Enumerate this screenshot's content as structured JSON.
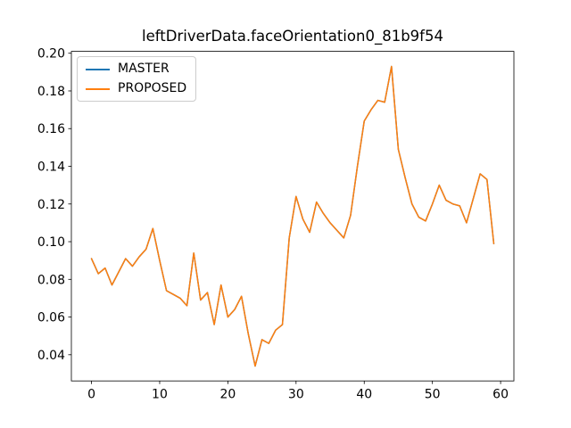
{
  "chart_data": {
    "type": "line",
    "title": "leftDriverData.faceOrientation0_81b9f54",
    "xlabel": "",
    "ylabel": "",
    "grid": false,
    "legend_position": "upper-left",
    "background_color": "#ffffff",
    "axis_color": "#000000",
    "x_ticks": [
      0,
      10,
      20,
      30,
      40,
      50,
      60
    ],
    "y_ticks": [
      0.04,
      0.06,
      0.08,
      0.1,
      0.12,
      0.14,
      0.16,
      0.18,
      0.2
    ],
    "xlim": [
      -2.95,
      61.95
    ],
    "ylim": [
      0.0261,
      0.201
    ],
    "x": [
      0,
      1,
      2,
      3,
      4,
      5,
      6,
      7,
      8,
      9,
      10,
      11,
      12,
      13,
      14,
      15,
      16,
      17,
      18,
      19,
      20,
      21,
      22,
      23,
      24,
      25,
      26,
      27,
      28,
      29,
      30,
      31,
      32,
      33,
      34,
      35,
      36,
      37,
      38,
      39,
      40,
      41,
      42,
      43,
      44,
      45,
      46,
      47,
      48,
      49,
      50,
      51,
      52,
      53,
      54,
      55,
      56,
      57,
      58,
      59
    ],
    "series": [
      {
        "name": "MASTER",
        "color": "#1f77b4",
        "values": [
          0.091,
          0.083,
          0.086,
          0.077,
          0.084,
          0.091,
          0.087,
          0.092,
          0.096,
          0.107,
          0.09,
          0.074,
          0.072,
          0.07,
          0.066,
          0.094,
          0.069,
          0.073,
          0.056,
          0.077,
          0.06,
          0.064,
          0.071,
          0.051,
          0.034,
          0.048,
          0.046,
          0.053,
          0.056,
          0.102,
          0.124,
          0.112,
          0.105,
          0.121,
          0.115,
          0.11,
          0.106,
          0.102,
          0.114,
          0.14,
          0.164,
          0.17,
          0.175,
          0.174,
          0.193,
          0.149,
          0.134,
          0.12,
          0.113,
          0.111,
          0.12,
          0.13,
          0.122,
          0.12,
          0.119,
          0.11,
          0.123,
          0.136,
          0.133,
          0.099
        ]
      },
      {
        "name": "PROPOSED",
        "color": "#ff7f0e",
        "values": [
          0.091,
          0.083,
          0.086,
          0.077,
          0.084,
          0.091,
          0.087,
          0.092,
          0.096,
          0.107,
          0.09,
          0.074,
          0.072,
          0.07,
          0.066,
          0.094,
          0.069,
          0.073,
          0.056,
          0.077,
          0.06,
          0.064,
          0.071,
          0.051,
          0.034,
          0.048,
          0.046,
          0.053,
          0.056,
          0.102,
          0.124,
          0.112,
          0.105,
          0.121,
          0.115,
          0.11,
          0.106,
          0.102,
          0.114,
          0.14,
          0.164,
          0.17,
          0.175,
          0.174,
          0.193,
          0.149,
          0.134,
          0.12,
          0.113,
          0.111,
          0.12,
          0.13,
          0.122,
          0.12,
          0.119,
          0.11,
          0.123,
          0.136,
          0.133,
          0.099
        ]
      }
    ]
  }
}
